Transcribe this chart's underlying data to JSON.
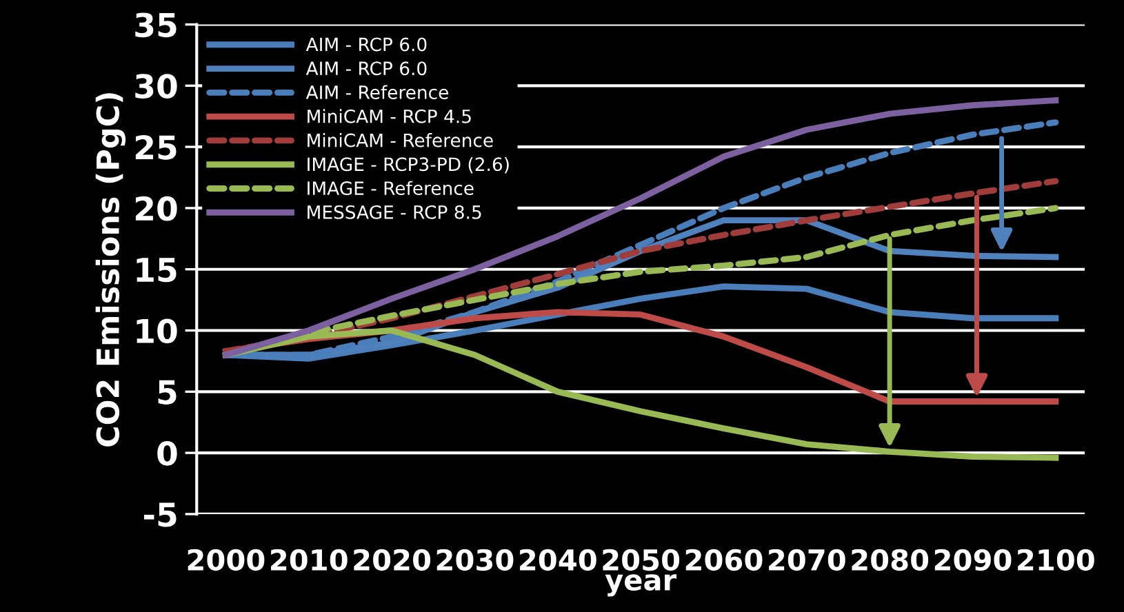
{
  "chart_data": {
    "type": "line",
    "xlabel": "year",
    "ylabel": "CO2 Emissions (PgC)",
    "categories": [
      "2000",
      "2010",
      "2020",
      "2030",
      "2040",
      "2050",
      "2060",
      "2070",
      "2080",
      "2090",
      "2100"
    ],
    "ylim": [
      -5,
      35
    ],
    "yticks": [
      -5,
      0,
      5,
      10,
      15,
      20,
      25,
      30,
      35
    ],
    "grid": "y",
    "legend": "top left",
    "series": [
      {
        "name": "AIM - RCP 6.0",
        "color": "#4a7ebb",
        "line_style": "solid",
        "values": [
          8,
          7.7,
          8.8,
          10,
          11.3,
          12.6,
          13.6,
          13.4,
          11.5,
          11,
          11
        ]
      },
      {
        "name": "AIM - RCP 6.0",
        "color": "#4f81bd",
        "line_style": "solid",
        "values": [
          8,
          8,
          9,
          11.5,
          13.5,
          16.5,
          19,
          19,
          16.5,
          16.1,
          16
        ]
      },
      {
        "name": "AIM - Reference",
        "color": "#4a7ebb",
        "line_style": "dashed",
        "values": [
          8,
          8,
          9.5,
          11.5,
          14,
          17,
          20,
          22.5,
          24.5,
          26,
          27
        ]
      },
      {
        "name": "MiniCAM - RCP 4.5",
        "color": "#be4b48",
        "line_style": "solid",
        "values": [
          8.3,
          9.3,
          10,
          11,
          11.5,
          11.3,
          9.5,
          7,
          4.2,
          4.2,
          4.2
        ]
      },
      {
        "name": "MiniCAM - Reference",
        "color": "#a03c3a",
        "line_style": "dashed",
        "values": [
          8.3,
          9.5,
          11,
          12.8,
          14.6,
          16.5,
          17.8,
          19,
          20.1,
          21.2,
          22.2
        ]
      },
      {
        "name": "IMAGE - RCP3-PD (2.6)",
        "color": "#98b954",
        "line_style": "solid",
        "values": [
          8,
          9.5,
          10,
          8,
          5,
          3.4,
          2,
          0.7,
          0.1,
          -0.3,
          -0.4
        ]
      },
      {
        "name": "IMAGE - Reference",
        "color": "#98b954",
        "line_style": "dashed",
        "values": [
          8,
          9.8,
          11.2,
          12.5,
          13.8,
          14.8,
          15.3,
          16,
          17.8,
          19,
          20
        ]
      },
      {
        "name": "MESSAGE - RCP 8.5",
        "color": "#7d60a0",
        "line_style": "solid",
        "values": [
          8,
          10,
          12.6,
          15,
          17.7,
          20.8,
          24.2,
          26.4,
          27.7,
          28.4,
          28.8
        ]
      }
    ]
  }
}
